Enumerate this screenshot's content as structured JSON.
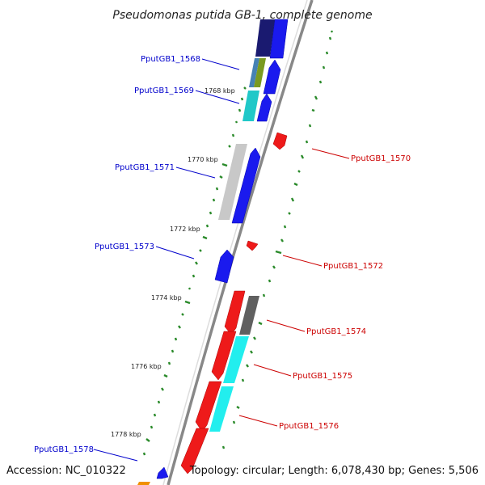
{
  "title": "Pseudomonas putida GB-1, complete genome",
  "accession_text": "Accession: NC_010322",
  "summary_text": "Topology: circular; Length: 6,078,430 bp; Genes: 5,506",
  "colors": {
    "backbone": "#888888",
    "gc_ticks": "#2a8a2a",
    "minus_strand_label": "#0000cc",
    "plus_strand_label": "#cc0000",
    "forward_cds": "#0000ff",
    "reverse_cds": "#ff0000"
  },
  "scale_ticks": [
    "1768 kbp",
    "1770 kbp",
    "1772 kbp",
    "1774 kbp",
    "1776 kbp",
    "1778 kbp"
  ],
  "gene_labels": [
    {
      "id": "g1568",
      "text": "PputGB1_1568",
      "strand": "minus"
    },
    {
      "id": "g1569",
      "text": "PputGB1_1569",
      "strand": "minus"
    },
    {
      "id": "g1570",
      "text": "PputGB1_1570",
      "strand": "plus"
    },
    {
      "id": "g1571",
      "text": "PputGB1_1571",
      "strand": "minus"
    },
    {
      "id": "g1572",
      "text": "PputGB1_1572",
      "strand": "plus"
    },
    {
      "id": "g1573",
      "text": "PputGB1_1573",
      "strand": "minus"
    },
    {
      "id": "g1574",
      "text": "PputGB1_1574",
      "strand": "plus"
    },
    {
      "id": "g1575",
      "text": "PputGB1_1575",
      "strand": "plus"
    },
    {
      "id": "g1576",
      "text": "PputGB1_1576",
      "strand": "plus"
    },
    {
      "id": "g1578",
      "text": "PputGB1_1578",
      "strand": "minus"
    }
  ]
}
